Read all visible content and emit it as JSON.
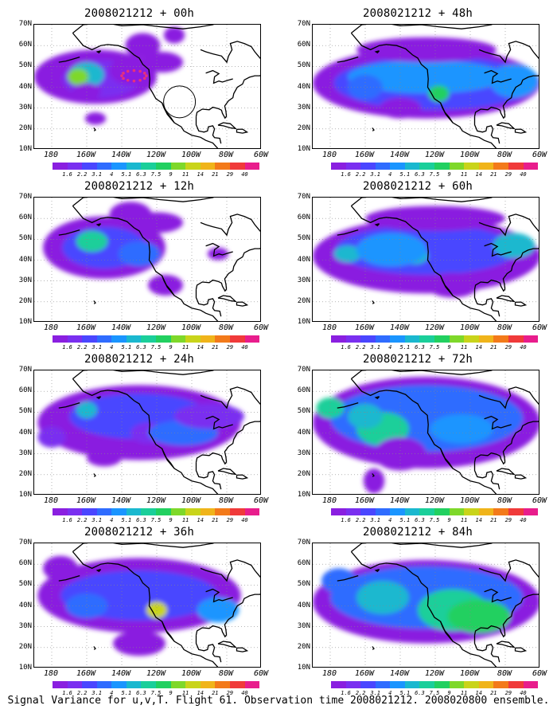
{
  "panels": [
    {
      "title": "2008021212 + 00h"
    },
    {
      "title": "2008021212 + 48h"
    },
    {
      "title": "2008021212 + 12h"
    },
    {
      "title": "2008021212 + 60h"
    },
    {
      "title": "2008021212 + 24h"
    },
    {
      "title": "2008021212 + 72h"
    },
    {
      "title": "2008021212 + 36h"
    },
    {
      "title": "2008021212 + 84h"
    }
  ],
  "lat_labels": [
    "70N",
    "60N",
    "50N",
    "40N",
    "30N",
    "20N",
    "10N"
  ],
  "lon_labels": [
    "180",
    "160W",
    "140W",
    "120W",
    "100W",
    "80W",
    "60W"
  ],
  "colorbar": {
    "labels": [
      "1.6",
      "2.2",
      "3.1",
      "4",
      "5.1",
      "6.3",
      "7.5",
      "9",
      "11",
      "14",
      "21",
      "29",
      "40"
    ],
    "colors": [
      "#8a1fe0",
      "#7a2ff0",
      "#4a46ff",
      "#2f6cff",
      "#1a95ff",
      "#1ab8cf",
      "#1acf9a",
      "#22d060",
      "#7ed82a",
      "#c9d41a",
      "#f0b41a",
      "#f37a1a",
      "#f03a3a",
      "#e81d8c"
    ]
  },
  "caption": "Signal Variance for u,v,T. Flight 61. Observation time 2008021212. 2008020800 ensemble."
}
